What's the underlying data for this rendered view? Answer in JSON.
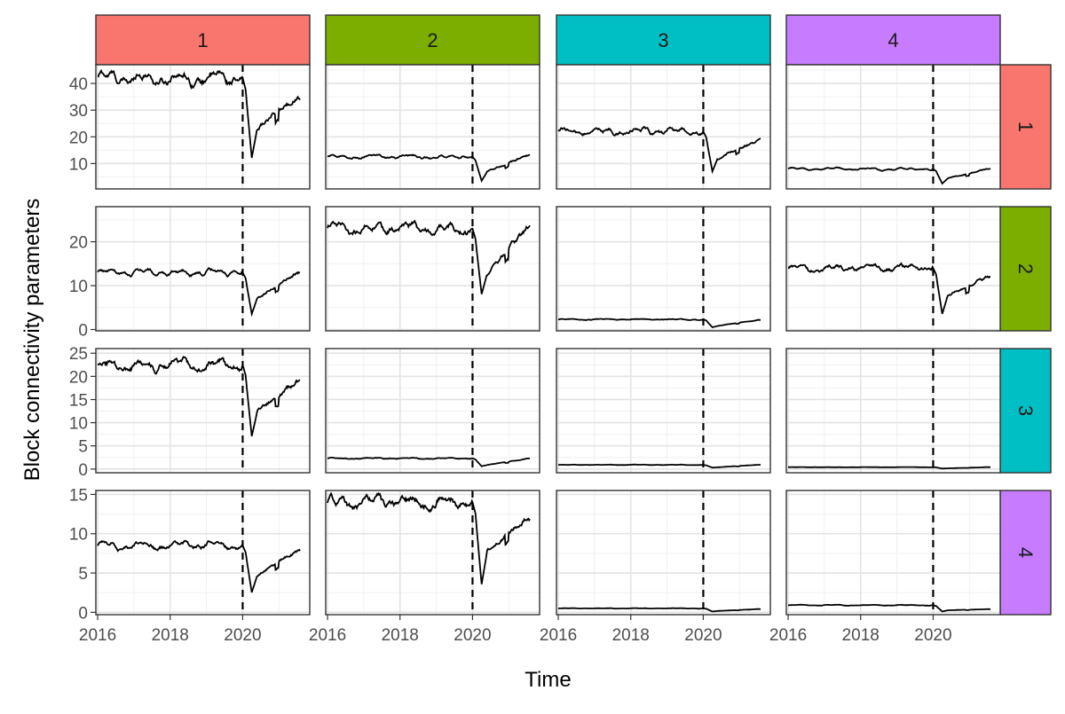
{
  "chart_data": {
    "type": "line",
    "facet": "grid",
    "xlabel": "Time",
    "ylabel": "Block connectivity parameters",
    "col_strips": [
      {
        "label": "1",
        "color": "#F8766D"
      },
      {
        "label": "2",
        "color": "#7CAE00"
      },
      {
        "label": "3",
        "color": "#00BFC4"
      },
      {
        "label": "4",
        "color": "#C77CFF"
      }
    ],
    "row_strips": [
      {
        "label": "1",
        "color": "#F8766D"
      },
      {
        "label": "2",
        "color": "#7CAE00"
      },
      {
        "label": "3",
        "color": "#00BFC4"
      },
      {
        "label": "4",
        "color": "#C77CFF"
      }
    ],
    "x_ticks": [
      "2016",
      "2018",
      "2020"
    ],
    "xlim": [
      2015.95,
      2021.85
    ],
    "vline_x": 2020.0,
    "line_color": "#000000",
    "rows": [
      {
        "ylim": [
          0.5,
          47
        ],
        "y_ticks": [
          10,
          20,
          30,
          40
        ],
        "y_tick_labels": [
          "10",
          "20",
          "30",
          "40"
        ],
        "minor_y_ticks": [
          5,
          15,
          25,
          35,
          45
        ],
        "pre_levels": [
          42,
          12.5,
          22,
          8
        ],
        "valley_levels": [
          12,
          3.5,
          7,
          2.5
        ],
        "end_levels": [
          35,
          13,
          18.5,
          8
        ]
      },
      {
        "ylim": [
          -0.3,
          28
        ],
        "y_ticks": [
          0,
          10,
          20
        ],
        "y_tick_labels": [
          "0",
          "10",
          "20"
        ],
        "minor_y_ticks": [
          5,
          15,
          25
        ],
        "pre_levels": [
          13,
          23,
          2.3,
          14
        ],
        "valley_levels": [
          3.5,
          8,
          0.5,
          3.5
        ],
        "end_levels": [
          13,
          23,
          2.2,
          12
        ]
      },
      {
        "ylim": [
          -0.8,
          26
        ],
        "y_ticks": [
          0,
          5,
          10,
          15,
          20,
          25
        ],
        "y_tick_labels": [
          "0",
          "5",
          "10",
          "15",
          "20",
          "25"
        ],
        "minor_y_ticks": [
          2.5,
          7.5,
          12.5,
          17.5,
          22.5
        ],
        "pre_levels": [
          22.5,
          2.3,
          0.9,
          0.4
        ],
        "valley_levels": [
          7,
          0.6,
          0.3,
          0.1
        ],
        "end_levels": [
          19,
          2.2,
          0.9,
          0.4
        ]
      },
      {
        "ylim": [
          -0.3,
          15.5
        ],
        "y_ticks": [
          0,
          5,
          10,
          15
        ],
        "y_tick_labels": [
          "0",
          "5",
          "10",
          "15"
        ],
        "minor_y_ticks": [
          2.5,
          7.5,
          12.5
        ],
        "pre_levels": [
          8.5,
          14,
          0.5,
          0.9
        ],
        "valley_levels": [
          2.5,
          3.5,
          0.1,
          0.1
        ],
        "end_levels": [
          7.8,
          12,
          0.4,
          0.4
        ]
      }
    ]
  }
}
